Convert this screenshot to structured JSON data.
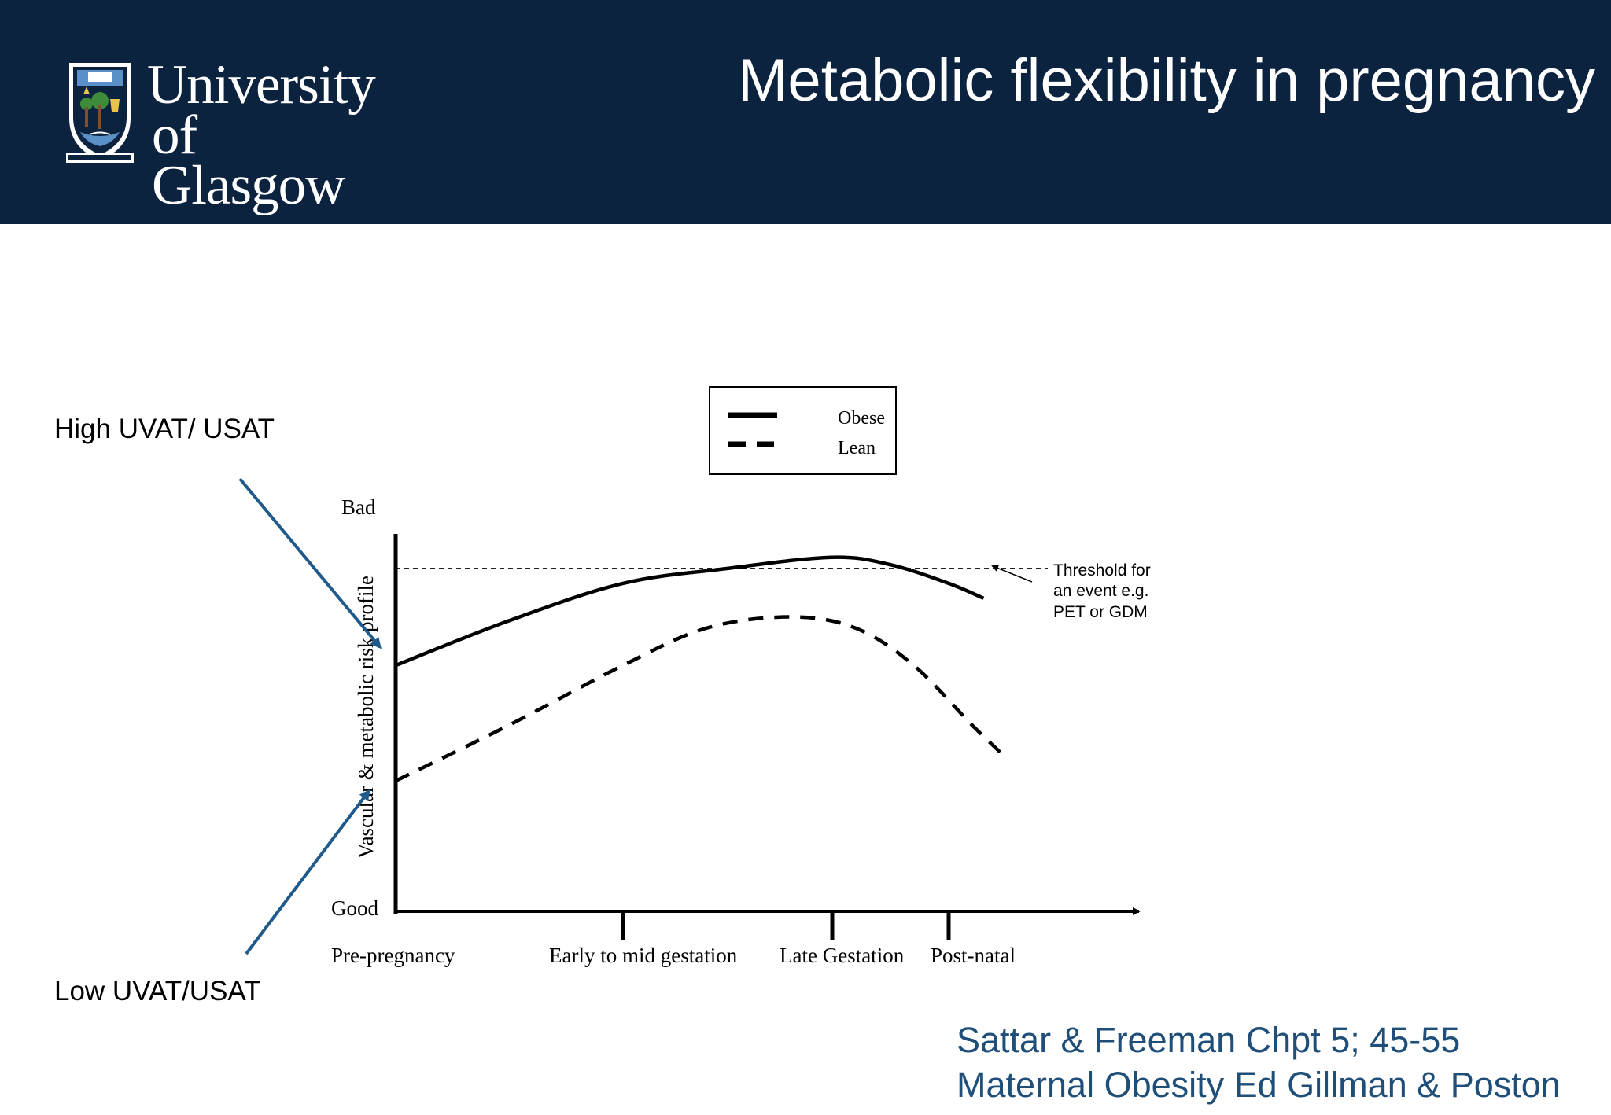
{
  "header": {
    "title": "Metabolic flexibility in pregnancy",
    "logo": {
      "line1": "University",
      "line2": "of Glasgow",
      "crest_icon": "university-crest-icon"
    },
    "background_color": "#0c2340"
  },
  "annotations": {
    "high_label": "High UVAT/ USAT",
    "low_label": "Low UVAT/USAT",
    "arrow_color": "#1f5a8a"
  },
  "chart_data": {
    "type": "line",
    "ylabel": "Vascular & metabolic risk profile",
    "y_top_label": "Bad",
    "y_bottom_label": "Good",
    "categories": [
      "Pre-pregnancy",
      "Early to mid gestation",
      "Late Gestation",
      "Post-natal"
    ],
    "legend": {
      "position": "top-center",
      "entries": [
        "Obese",
        "Lean"
      ]
    },
    "threshold_label": [
      "Threshold for",
      "an event e.g.",
      "PET or GDM"
    ],
    "ylim": [
      0,
      100
    ],
    "threshold": 92,
    "series": [
      {
        "name": "Obese",
        "style": "solid",
        "points": [
          [
            0,
            66
          ],
          [
            0.5,
            78
          ],
          [
            1.0,
            88
          ],
          [
            1.5,
            92
          ],
          [
            2.0,
            95
          ],
          [
            2.5,
            93
          ],
          [
            3.0,
            88
          ],
          [
            3.3,
            84
          ]
        ]
      },
      {
        "name": "Lean",
        "style": "dashed",
        "points": [
          [
            0,
            35
          ],
          [
            0.5,
            50
          ],
          [
            1.0,
            66
          ],
          [
            1.4,
            76
          ],
          [
            1.8,
            79
          ],
          [
            2.2,
            76
          ],
          [
            2.7,
            66
          ],
          [
            3.2,
            50
          ],
          [
            3.5,
            41
          ]
        ]
      }
    ]
  },
  "citation": {
    "line1": "Sattar & Freeman Chpt 5; 45-55",
    "line2": "Maternal Obesity Ed Gillman & Poston"
  }
}
